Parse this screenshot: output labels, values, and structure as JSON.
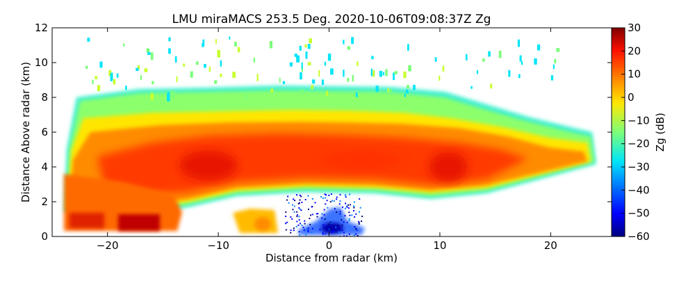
{
  "chart_data": {
    "type": "heatmap",
    "title": "LMU miraMACS 253.5 Deg. 2020-10-06T09:08:37Z  Zg",
    "xlabel": "Distance from radar (km)",
    "ylabel": "Distance Above radar  (km)",
    "xlim": [
      -25,
      25.5
    ],
    "ylim": [
      0,
      12
    ],
    "x_ticks": [
      -20,
      -10,
      0,
      10,
      20
    ],
    "x_tick_labels": [
      "−20",
      "−10",
      "0",
      "10",
      "20"
    ],
    "y_ticks": [
      0,
      2,
      4,
      6,
      8,
      10,
      12
    ],
    "y_tick_labels": [
      "0",
      "2",
      "4",
      "6",
      "8",
      "10",
      "12"
    ],
    "colorbar": {
      "label": "Zg (dB)",
      "range": [
        -60,
        30
      ],
      "ticks": [
        30,
        20,
        10,
        0,
        -10,
        -20,
        -30,
        -40,
        -50,
        -60
      ],
      "tick_labels": [
        "30",
        "20",
        "10",
        "0",
        "−10",
        "−20",
        "−30",
        "−40",
        "−50",
        "−60"
      ],
      "colormap": "jet"
    },
    "cloud_layer": {
      "x_range_km": [
        -24,
        24
      ],
      "base_km": [
        2.2,
        3.0
      ],
      "top_km": [
        8.0,
        8.5
      ],
      "peak_dbz": 25,
      "core_dbz_range": [
        10,
        25
      ],
      "edge_dbz_range": [
        -30,
        -15
      ],
      "lower_left_precip_x_km": [
        -24,
        -14
      ],
      "lower_left_precip_dbz": 25
    },
    "clutter_near_radar": {
      "x_range_km": [
        -4,
        3
      ],
      "height_km": [
        0,
        2.5
      ],
      "dbz_range": [
        -60,
        -30
      ]
    },
    "colors": {
      "c_m60": "#00007f",
      "c_m50": "#0000ff",
      "c_m40": "#007fff",
      "c_m30": "#00e5f8",
      "c_m20": "#7dff7a",
      "c_m10": "#c8ff30",
      "c_0": "#ffe600",
      "c_10": "#ff8c00",
      "c_20": "#ff3000",
      "c_30": "#7f0000"
    }
  }
}
